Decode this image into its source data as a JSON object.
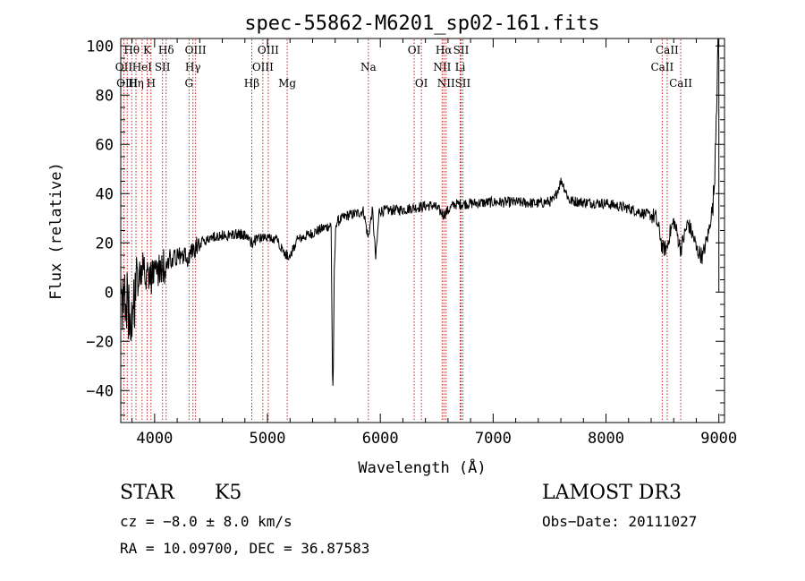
{
  "chart_data": {
    "type": "line",
    "title": "spec-55862-M6201_sp02-161.fits",
    "xlabel": "Wavelength (Å)",
    "ylabel": "Flux (relative)",
    "xlim": [
      3700,
      9050
    ],
    "ylim": [
      -53,
      103
    ],
    "x_ticks": [
      4000,
      5000,
      6000,
      7000,
      8000,
      9000
    ],
    "x_tick_labels": [
      "4000",
      "5000",
      "6000",
      "7000",
      "8000",
      "9000"
    ],
    "y_ticks": [
      -40,
      -20,
      0,
      20,
      40,
      60,
      80,
      100
    ],
    "y_tick_labels": [
      "−40",
      "−20",
      "0",
      "20",
      "40",
      "60",
      "80",
      "100"
    ],
    "x_minor_step": 200,
    "y_minor_step": 5,
    "grid": false,
    "line_color": "#000000",
    "marker_color": "#cc2222",
    "continuum": [
      [
        3700,
        5
      ],
      [
        3800,
        8
      ],
      [
        3900,
        9
      ],
      [
        4000,
        11
      ],
      [
        4100,
        13
      ],
      [
        4200,
        15
      ],
      [
        4300,
        17
      ],
      [
        4400,
        20
      ],
      [
        4500,
        22
      ],
      [
        4600,
        23
      ],
      [
        4700,
        23.5
      ],
      [
        4800,
        23.5
      ],
      [
        4900,
        23
      ],
      [
        5000,
        22
      ],
      [
        5100,
        21
      ],
      [
        5200,
        19
      ],
      [
        5300,
        22
      ],
      [
        5400,
        24
      ],
      [
        5500,
        26
      ],
      [
        5600,
        28
      ],
      [
        5700,
        31
      ],
      [
        5800,
        32
      ],
      [
        5900,
        34
      ],
      [
        6000,
        33
      ],
      [
        6200,
        33.5
      ],
      [
        6400,
        35
      ],
      [
        6600,
        35.5
      ],
      [
        6800,
        36
      ],
      [
        7000,
        36.5
      ],
      [
        7200,
        36.5
      ],
      [
        7400,
        36
      ],
      [
        7600,
        37.5
      ],
      [
        7800,
        36.5
      ],
      [
        8000,
        36
      ],
      [
        8200,
        34
      ],
      [
        8400,
        31
      ],
      [
        8600,
        29
      ],
      [
        8800,
        27
      ],
      [
        8950,
        28
      ],
      [
        9000,
        30
      ]
    ],
    "spectral_features": [
      [
        3737,
        -8,
        90
      ],
      [
        3800,
        -12,
        90
      ],
      [
        4000,
        -6,
        120
      ],
      [
        4300,
        -3,
        90
      ],
      [
        4861,
        -3,
        90
      ],
      [
        5175,
        -5,
        90
      ],
      [
        5578,
        -50,
        14
      ],
      [
        5585,
        -30,
        22
      ],
      [
        5892,
        -12,
        40
      ],
      [
        5960,
        -20,
        30
      ],
      [
        6563,
        -4,
        90
      ],
      [
        7605,
        8,
        70
      ],
      [
        8498,
        -10,
        60
      ],
      [
        8542,
        -9,
        60
      ],
      [
        8662,
        -11,
        60
      ],
      [
        8800,
        -8,
        70
      ],
      [
        8860,
        -12,
        70
      ],
      [
        8970,
        10,
        60
      ],
      [
        8990,
        30,
        40
      ],
      [
        9000,
        40,
        40
      ]
    ],
    "noise_seed": 161,
    "lines": [
      {
        "label": "Hθ",
        "wavelength": 3797,
        "row": 0
      },
      {
        "label": "OII",
        "wavelength": 3727,
        "row": 1
      },
      {
        "label": "OIII",
        "wavelength": 3757,
        "row": 2
      },
      {
        "label": "K",
        "wavelength": 3934,
        "row": 0
      },
      {
        "label": "HeI",
        "wavelength": 3889,
        "row": 1
      },
      {
        "label": "Hη",
        "wavelength": 3835,
        "row": 2
      },
      {
        "label": "SII",
        "wavelength": 4070,
        "row": 1
      },
      {
        "label": "H",
        "wavelength": 3968,
        "row": 2
      },
      {
        "label": "Hδ",
        "wavelength": 4102,
        "row": 0
      },
      {
        "label": "OIII",
        "wavelength": 4363,
        "row": 0
      },
      {
        "label": "Hγ",
        "wavelength": 4340,
        "row": 1
      },
      {
        "label": "G",
        "wavelength": 4305,
        "row": 2
      },
      {
        "label": "OIII",
        "wavelength": 5007,
        "row": 0
      },
      {
        "label": "OIII",
        "wavelength": 4959,
        "row": 1
      },
      {
        "label": "Hβ",
        "wavelength": 4861,
        "row": 2
      },
      {
        "label": "Mg",
        "wavelength": 5175,
        "row": 2
      },
      {
        "label": "Na",
        "wavelength": 5894,
        "row": 1
      },
      {
        "label": "OI",
        "wavelength": 6300,
        "row": 0
      },
      {
        "label": "OI",
        "wavelength": 6364,
        "row": 2
      },
      {
        "label": "Hα",
        "wavelength": 6563,
        "row": 0
      },
      {
        "label": "SII",
        "wavelength": 6716,
        "row": 0
      },
      {
        "label": "NII",
        "wavelength": 6548,
        "row": 1
      },
      {
        "label": "Li",
        "wavelength": 6708,
        "row": 1
      },
      {
        "label": "NII",
        "wavelength": 6583,
        "row": 2
      },
      {
        "label": "SII",
        "wavelength": 6731,
        "row": 2
      },
      {
        "label": "CaII",
        "wavelength": 8542,
        "row": 0
      },
      {
        "label": "CaII",
        "wavelength": 8498,
        "row": 1
      },
      {
        "label": "CaII",
        "wavelength": 8662,
        "row": 2
      }
    ]
  },
  "info": {
    "object_type": "STAR",
    "subclass": "K5",
    "survey": "LAMOST DR3",
    "redshift_label": "cz = −8.0 ± 8.0 km/s",
    "obs_date": "Obs−Date: 20111027",
    "coords": "RA =  10.09700, DEC =  36.87583"
  }
}
